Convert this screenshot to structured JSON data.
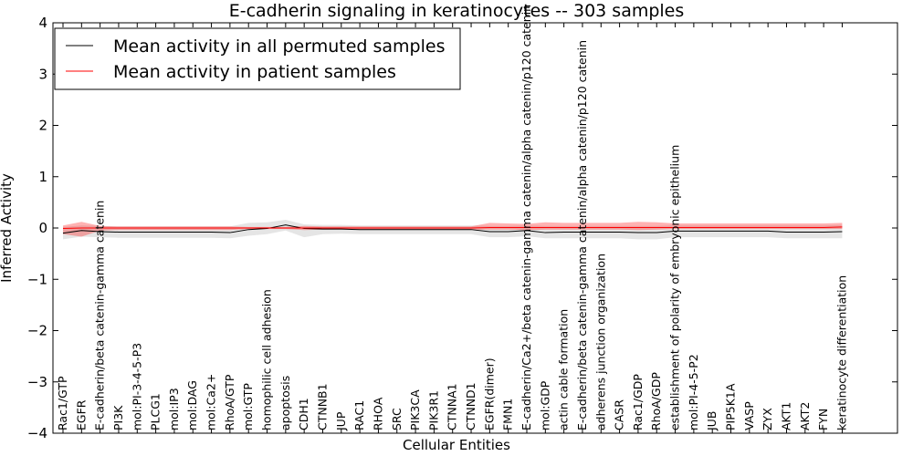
{
  "chart_data": {
    "type": "line",
    "title": "E-cadherin signaling in keratinocytes -- 303 samples",
    "xlabel": "Cellular Entities",
    "ylabel": "Inferred Activity",
    "ylim": [
      -4,
      4
    ],
    "yticks": [
      4,
      3,
      2,
      1,
      0,
      -1,
      -2,
      -3,
      -4
    ],
    "ytick_labels": [
      "4",
      "3",
      "2",
      "1",
      "0",
      "−1",
      "−2",
      "−3",
      "−4"
    ],
    "grid": false,
    "legend_position": "top-left",
    "categories": [
      "Rac1/GTP",
      "EGFR",
      "E-cadherin/beta catenin-gamma catenin",
      "PI3K",
      "mol:PI-3-4-5-P3",
      "PLCG1",
      "mol:IP3",
      "mol:DAG",
      "mol:Ca2+",
      "RhoA/GTP",
      "mol:GTP",
      "homophilic cell adhesion",
      "apoptosis",
      "CDH1",
      "CTNNB1",
      "JUP",
      "RAC1",
      "RHOA",
      "SRC",
      "PIK3CA",
      "PIK3R1",
      "CTNNA1",
      "CTNND1",
      "EGFR(dimer)",
      "FMN1",
      "E-cadherin/Ca2+/beta catenin-gamma catenin/alpha catenin/p120 catenin",
      "mol:GDP",
      "actin cable formation",
      "E-cadherin/beta catenin-gamma catenin/alpha catenin/p120 catenin",
      "adherens junction organization",
      "CASR",
      "Rac1/GDP",
      "RhoA/GDP",
      "establishment of polarity of embryonic epithelium",
      "mol:PI-4-5-P2",
      "JUB",
      "PIP5K1A",
      "VASP",
      "ZYX",
      "AKT1",
      "AKT2",
      "FYN",
      "keratinocyte differentiation"
    ],
    "series": [
      {
        "name": "Mean activity in all permuted samples",
        "color": "#000000",
        "values": [
          -0.1,
          -0.05,
          -0.07,
          -0.08,
          -0.08,
          -0.08,
          -0.08,
          -0.08,
          -0.08,
          -0.09,
          -0.03,
          -0.01,
          0.06,
          -0.01,
          -0.02,
          -0.02,
          -0.03,
          -0.03,
          -0.03,
          -0.03,
          -0.03,
          -0.03,
          -0.03,
          -0.07,
          -0.07,
          -0.05,
          -0.09,
          -0.08,
          -0.08,
          -0.08,
          -0.08,
          -0.09,
          -0.09,
          -0.06,
          -0.06,
          -0.06,
          -0.06,
          -0.06,
          -0.06,
          -0.08,
          -0.08,
          -0.08,
          -0.07
        ],
        "band_upper": [
          0.02,
          0.05,
          0.04,
          0.03,
          0.03,
          0.03,
          0.03,
          0.03,
          0.03,
          0.03,
          0.1,
          0.11,
          0.16,
          0.07,
          0.06,
          0.06,
          0.05,
          0.05,
          0.05,
          0.05,
          0.05,
          0.05,
          0.05,
          0.04,
          0.04,
          0.05,
          0.04,
          0.04,
          0.04,
          0.04,
          0.04,
          0.04,
          0.04,
          0.05,
          0.05,
          0.05,
          0.05,
          0.05,
          0.05,
          0.05,
          0.05,
          0.05,
          0.06
        ],
        "band_lower": [
          -0.22,
          -0.17,
          -0.18,
          -0.19,
          -0.19,
          -0.19,
          -0.19,
          -0.19,
          -0.19,
          -0.2,
          -0.15,
          -0.12,
          -0.05,
          -0.18,
          -0.12,
          -0.11,
          -0.12,
          -0.12,
          -0.12,
          -0.12,
          -0.12,
          -0.12,
          -0.12,
          -0.18,
          -0.18,
          -0.16,
          -0.2,
          -0.2,
          -0.2,
          -0.2,
          -0.2,
          -0.22,
          -0.22,
          -0.18,
          -0.18,
          -0.18,
          -0.18,
          -0.18,
          -0.18,
          -0.2,
          -0.2,
          -0.2,
          -0.2
        ]
      },
      {
        "name": "Mean activity in patient samples",
        "color": "#ff0000",
        "values": [
          -0.01,
          0.0,
          0.0,
          0.0,
          0.0,
          0.0,
          0.0,
          0.0,
          0.0,
          0.0,
          0.0,
          0.0,
          0.0,
          0.0,
          0.0,
          0.0,
          0.0,
          0.0,
          0.0,
          0.0,
          0.0,
          0.0,
          0.0,
          0.01,
          0.01,
          0.01,
          0.01,
          0.01,
          0.01,
          0.01,
          0.01,
          0.01,
          0.01,
          0.01,
          0.01,
          0.01,
          0.01,
          0.01,
          0.01,
          0.01,
          0.01,
          0.01,
          0.02
        ],
        "band_upper": [
          0.05,
          0.12,
          0.04,
          0.03,
          0.03,
          0.03,
          0.03,
          0.03,
          0.03,
          0.03,
          0.02,
          0.02,
          0.02,
          0.04,
          0.03,
          0.03,
          0.03,
          0.03,
          0.03,
          0.03,
          0.03,
          0.03,
          0.03,
          0.1,
          0.09,
          0.08,
          0.11,
          0.1,
          0.1,
          0.1,
          0.1,
          0.12,
          0.11,
          0.09,
          0.09,
          0.09,
          0.09,
          0.09,
          0.09,
          0.09,
          0.09,
          0.09,
          0.1
        ],
        "band_lower": [
          -0.12,
          -0.17,
          -0.05,
          -0.04,
          -0.04,
          -0.04,
          -0.04,
          -0.04,
          -0.04,
          -0.04,
          -0.02,
          -0.02,
          -0.02,
          -0.04,
          -0.03,
          -0.03,
          -0.03,
          -0.03,
          -0.03,
          -0.03,
          -0.03,
          -0.03,
          -0.03,
          -0.03,
          -0.03,
          -0.04,
          -0.03,
          -0.03,
          -0.03,
          -0.03,
          -0.03,
          -0.04,
          -0.03,
          -0.02,
          -0.02,
          -0.02,
          -0.02,
          -0.02,
          -0.02,
          -0.02,
          -0.02,
          -0.02,
          -0.02
        ]
      }
    ]
  }
}
